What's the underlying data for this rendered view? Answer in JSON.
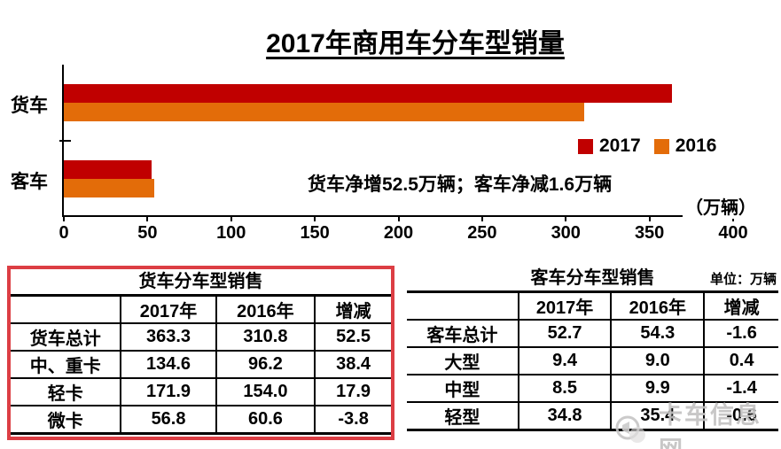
{
  "title": "2017年商用车分车型销量",
  "chart_data": {
    "type": "bar",
    "orientation": "horizontal",
    "title": "2017年商用车分车型销量",
    "categories": [
      "货车",
      "客车"
    ],
    "series": [
      {
        "name": "2017",
        "color": "#C00000",
        "values": [
          363.3,
          52.7
        ]
      },
      {
        "name": "2016",
        "color": "#E36C09",
        "values": [
          310.8,
          54.3
        ]
      }
    ],
    "xlim": [
      0,
      400
    ],
    "xticks": [
      0,
      50,
      100,
      150,
      200,
      250,
      300,
      350,
      400
    ],
    "unit_label": "（万辆）",
    "annotation": "货车净增52.5万辆；客车净减1.6万辆",
    "legend_position": "right-middle",
    "grid": false
  },
  "truck_table": {
    "title": "货车分车型销售",
    "headers": [
      "",
      "2017年",
      "2016年",
      "增减"
    ],
    "rows": [
      [
        "货车总计",
        "363.3",
        "310.8",
        "52.5"
      ],
      [
        "中、重卡",
        "134.6",
        "96.2",
        "38.4"
      ],
      [
        "轻卡",
        "171.9",
        "154.0",
        "17.9"
      ],
      [
        "微卡",
        "56.8",
        "60.6",
        "-3.8"
      ]
    ],
    "highlight_border_color": "#DC3E44"
  },
  "bus_table": {
    "title": "客车分车型销售",
    "unit_note": "单位：万辆",
    "headers": [
      "",
      "2017年",
      "2016年",
      "增减"
    ],
    "rows": [
      [
        "客车总计",
        "52.7",
        "54.3",
        "-1.6"
      ],
      [
        "大型",
        "9.4",
        "9.0",
        "0.4"
      ],
      [
        "中型",
        "8.5",
        "9.9",
        "-1.4"
      ],
      [
        "轻型",
        "34.8",
        "35.4",
        "-0.6"
      ]
    ]
  },
  "watermark": {
    "text": "卡车信息网",
    "icon": "megaphone-icon"
  }
}
